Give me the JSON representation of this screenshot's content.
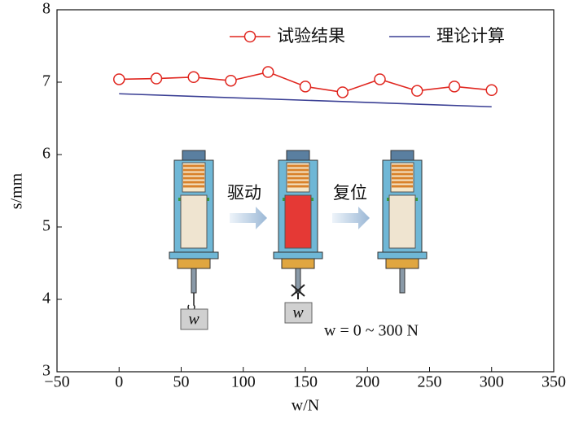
{
  "chart_data": {
    "type": "line",
    "x_label": "w/N",
    "y_label": "s/mm",
    "xlim": [
      -50,
      350
    ],
    "xticks": [
      {
        "value": -50,
        "label": "−50"
      },
      0,
      50,
      100,
      150,
      200,
      250,
      300,
      350
    ],
    "ylim": [
      3,
      8
    ],
    "yticks": [
      3,
      4,
      5,
      6,
      7,
      8
    ],
    "legend": "top-right",
    "series": [
      {
        "name": "试验结果",
        "color": "#e0261f",
        "marker": "circle",
        "x": [
          0,
          30,
          60,
          90,
          120,
          150,
          180,
          210,
          240,
          270,
          300
        ],
        "values": [
          7.04,
          7.05,
          7.07,
          7.02,
          7.14,
          6.94,
          6.86,
          7.04,
          6.88,
          6.94,
          6.89
        ]
      },
      {
        "name": "理论计算",
        "color": "#3a3f94",
        "x": [
          0,
          300
        ],
        "values": [
          6.84,
          6.66
        ]
      }
    ],
    "annotations": [
      "驱动",
      "复位",
      "w",
      "w",
      "w = 0 ~ 300 N"
    ]
  }
}
